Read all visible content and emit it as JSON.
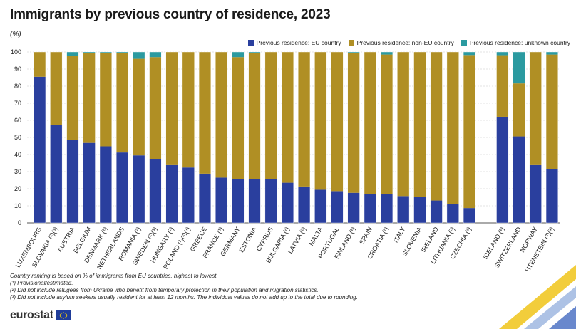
{
  "title": "Immigrants by previous country of residence, 2023",
  "unit": "(%)",
  "legend": {
    "eu": "Previous residence: EU country",
    "non_eu": "Previous residence: non-EU country",
    "unknown": "Previous residence: unknown country"
  },
  "colors": {
    "eu": "#2a3f9e",
    "non_eu": "#b08f24",
    "unknown": "#2b9aa0"
  },
  "chart_data": {
    "type": "bar",
    "stacked": true,
    "title": "Immigrants by previous country of residence, 2023",
    "ylabel": "(%)",
    "ylim": [
      0,
      100
    ],
    "yticks": [
      0,
      10,
      20,
      30,
      40,
      50,
      60,
      70,
      80,
      90,
      100
    ],
    "categories": [
      "LUXEMBOURG",
      "SLOVAKIA (²)(³)",
      "AUSTRIA",
      "BELGIUM",
      "DENMARK (²)",
      "NETHERLANDS",
      "ROMANIA (²)",
      "SWEDEN (²)(³)",
      "HUNGARY (²)",
      "POLAND (¹)(²)(³)",
      "GREECE",
      "FRANCE (¹)",
      "GERMANY",
      "ESTONIA",
      "CYPRUS",
      "BULGARIA (²)",
      "LATVIA (²)",
      "MALTA",
      "PORTUGAL",
      "FINLAND (²)",
      "SPAIN",
      "CROATIA (²)",
      "ITALY",
      "SLOVENIA",
      "IRELAND",
      "LITHUANIA (²)",
      "CZECHIA (²)",
      "ICELAND (²)",
      "SWITZERLAND",
      "NORWAY",
      "LIECHTENSTEIN (²)(³)"
    ],
    "group_break_after_index": 26,
    "series": [
      {
        "name": "Previous residence: EU country",
        "values": [
          85.5,
          57.5,
          48.5,
          46.8,
          44.8,
          41.2,
          39.5,
          37.5,
          33.8,
          32.4,
          28.8,
          26.5,
          25.8,
          25.6,
          25.5,
          23.5,
          21.3,
          19.4,
          18.6,
          17.6,
          16.8,
          16.7,
          15.7,
          15.1,
          13.1,
          11.2,
          8.7,
          62.1,
          50.6,
          33.8,
          31.4
        ]
      },
      {
        "name": "Previous residence: non-EU country",
        "values": [
          14.5,
          42.5,
          49.0,
          52.4,
          54.8,
          58.1,
          56.5,
          59.5,
          66.2,
          67.6,
          71.2,
          73.5,
          71.2,
          73.6,
          74.5,
          76.5,
          78.7,
          80.6,
          81.4,
          82.0,
          83.2,
          81.8,
          84.3,
          84.9,
          86.9,
          88.8,
          89.5,
          36.0,
          31.0,
          66.2,
          67.1
        ]
      },
      {
        "name": "Previous residence: unknown country",
        "values": [
          0,
          0,
          2.5,
          0.8,
          0.4,
          0.7,
          4.0,
          3.0,
          0,
          0,
          0,
          0,
          3.0,
          0.8,
          0,
          0,
          0,
          0,
          0,
          0.4,
          0,
          1.5,
          0,
          0,
          0,
          0,
          1.8,
          1.9,
          18.4,
          0,
          1.5
        ]
      }
    ]
  },
  "footnotes": [
    "Country ranking is based on % of immigrants from EU countries, highest to lowest.",
    "(¹) Provisional/estimated.",
    "(²) Did not include refugees from Ukraine who benefit from temporary protection in their population and migration statistics.",
    "(³) Did not include asylum seekers usually resident for at least 12 months. The individual values do not add up to the total due to rounding."
  ],
  "logo": {
    "text": "eurostat"
  }
}
